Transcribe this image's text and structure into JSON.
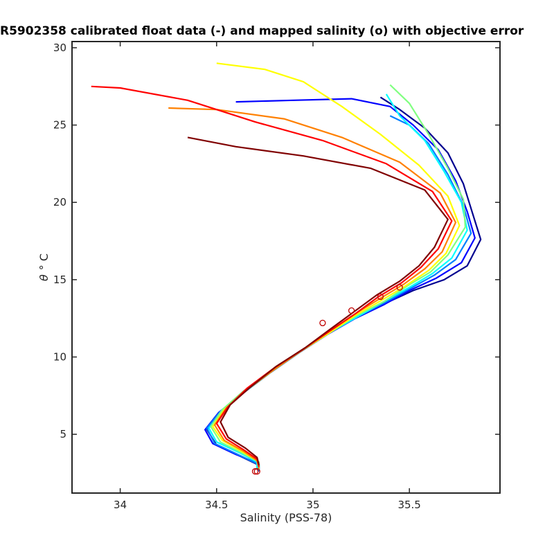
{
  "chart_data": {
    "type": "line",
    "title": "R5902358 calibrated float data (-) and mapped salinity (o) with objective error",
    "xlabel": "Salinity (PSS-78)",
    "ylabel_symbol": "θ",
    "ylabel_unit": "° C",
    "xlim": [
      33.75,
      35.97
    ],
    "ylim": [
      1.2,
      30.4
    ],
    "xticks": [
      34,
      34.5,
      35,
      35.5
    ],
    "xtick_labels": [
      "34",
      "34.5",
      "35",
      "35.5"
    ],
    "yticks": [
      5,
      10,
      15,
      20,
      25,
      30
    ],
    "ytick_labels": [
      "5",
      "10",
      "15",
      "20",
      "25",
      "30"
    ],
    "grid": false,
    "legend": "none",
    "colormap": [
      "#00008f",
      "#0000ff",
      "#0080ff",
      "#00ffff",
      "#80ff80",
      "#ffff00",
      "#ff8000",
      "#ff0000",
      "#800000"
    ],
    "series": [
      {
        "color": "#00008f",
        "points": [
          [
            34.72,
            2.6
          ],
          [
            34.72,
            3.0
          ],
          [
            34.62,
            3.6
          ],
          [
            34.5,
            4.3
          ],
          [
            34.45,
            5.3
          ],
          [
            34.52,
            6.4
          ],
          [
            34.63,
            7.6
          ],
          [
            34.78,
            9.0
          ],
          [
            34.93,
            10.3
          ],
          [
            35.08,
            11.5
          ],
          [
            35.22,
            12.6
          ],
          [
            35.38,
            13.5
          ],
          [
            35.52,
            14.3
          ],
          [
            35.68,
            15.0
          ],
          [
            35.8,
            15.9
          ],
          [
            35.87,
            17.6
          ],
          [
            35.83,
            19.2
          ],
          [
            35.78,
            21.2
          ],
          [
            35.7,
            23.2
          ],
          [
            35.58,
            24.8
          ],
          [
            35.45,
            26.0
          ],
          [
            35.35,
            26.8
          ]
        ]
      },
      {
        "color": "#0000ff",
        "points": [
          [
            34.72,
            2.7
          ],
          [
            34.72,
            3.1
          ],
          [
            34.6,
            3.7
          ],
          [
            34.48,
            4.4
          ],
          [
            34.44,
            5.3
          ],
          [
            34.51,
            6.4
          ],
          [
            34.63,
            7.6
          ],
          [
            34.78,
            9.0
          ],
          [
            34.93,
            10.3
          ],
          [
            35.08,
            11.5
          ],
          [
            35.22,
            12.5
          ],
          [
            35.37,
            13.4
          ],
          [
            35.5,
            14.3
          ],
          [
            35.64,
            15.1
          ],
          [
            35.77,
            16.1
          ],
          [
            35.84,
            17.7
          ],
          [
            35.8,
            19.4
          ],
          [
            35.74,
            21.4
          ],
          [
            35.65,
            23.4
          ],
          [
            35.52,
            25.0
          ],
          [
            35.4,
            26.2
          ],
          [
            35.2,
            26.7
          ],
          [
            34.9,
            26.6
          ],
          [
            34.6,
            26.5
          ]
        ]
      },
      {
        "color": "#0080ff",
        "points": [
          [
            34.72,
            2.6
          ],
          [
            34.71,
            3.1
          ],
          [
            34.61,
            3.7
          ],
          [
            34.49,
            4.4
          ],
          [
            34.45,
            5.4
          ],
          [
            34.52,
            6.5
          ],
          [
            34.64,
            7.7
          ],
          [
            34.79,
            9.1
          ],
          [
            34.94,
            10.4
          ],
          [
            35.09,
            11.6
          ],
          [
            35.23,
            12.6
          ],
          [
            35.37,
            13.5
          ],
          [
            35.5,
            14.4
          ],
          [
            35.63,
            15.3
          ],
          [
            35.74,
            16.3
          ],
          [
            35.82,
            18.0
          ],
          [
            35.78,
            19.8
          ],
          [
            35.7,
            21.8
          ],
          [
            35.6,
            23.8
          ],
          [
            35.5,
            25.0
          ],
          [
            35.4,
            25.6
          ]
        ]
      },
      {
        "color": "#00ffff",
        "points": [
          [
            34.71,
            2.7
          ],
          [
            34.71,
            3.2
          ],
          [
            34.62,
            3.8
          ],
          [
            34.5,
            4.5
          ],
          [
            34.46,
            5.4
          ],
          [
            34.53,
            6.5
          ],
          [
            34.64,
            7.7
          ],
          [
            34.79,
            9.1
          ],
          [
            34.94,
            10.4
          ],
          [
            35.09,
            11.6
          ],
          [
            35.23,
            12.6
          ],
          [
            35.37,
            13.6
          ],
          [
            35.5,
            14.5
          ],
          [
            35.62,
            15.4
          ],
          [
            35.72,
            16.4
          ],
          [
            35.8,
            18.2
          ],
          [
            35.77,
            20.0
          ],
          [
            35.68,
            22.0
          ],
          [
            35.58,
            24.0
          ],
          [
            35.45,
            25.6
          ],
          [
            35.38,
            27.0
          ]
        ]
      },
      {
        "color": "#80ff80",
        "points": [
          [
            34.72,
            2.7
          ],
          [
            34.72,
            3.2
          ],
          [
            34.63,
            3.8
          ],
          [
            34.52,
            4.5
          ],
          [
            34.47,
            5.5
          ],
          [
            34.53,
            6.6
          ],
          [
            34.64,
            7.8
          ],
          [
            34.79,
            9.1
          ],
          [
            34.94,
            10.4
          ],
          [
            35.09,
            11.6
          ],
          [
            35.23,
            12.7
          ],
          [
            35.37,
            13.6
          ],
          [
            35.49,
            14.6
          ],
          [
            35.61,
            15.5
          ],
          [
            35.7,
            16.6
          ],
          [
            35.79,
            18.4
          ],
          [
            35.78,
            20.2
          ],
          [
            35.7,
            22.2
          ],
          [
            35.6,
            24.4
          ],
          [
            35.5,
            26.4
          ],
          [
            35.4,
            27.6
          ]
        ]
      },
      {
        "color": "#ffff00",
        "points": [
          [
            34.72,
            2.8
          ],
          [
            34.71,
            3.3
          ],
          [
            34.63,
            3.9
          ],
          [
            34.53,
            4.6
          ],
          [
            34.48,
            5.5
          ],
          [
            34.54,
            6.6
          ],
          [
            34.65,
            7.8
          ],
          [
            34.79,
            9.2
          ],
          [
            34.94,
            10.4
          ],
          [
            35.09,
            11.6
          ],
          [
            35.22,
            12.7
          ],
          [
            35.36,
            13.7
          ],
          [
            35.48,
            14.6
          ],
          [
            35.6,
            15.6
          ],
          [
            35.69,
            16.7
          ],
          [
            35.76,
            18.5
          ],
          [
            35.7,
            20.4
          ],
          [
            35.55,
            22.4
          ],
          [
            35.35,
            24.4
          ],
          [
            35.15,
            26.2
          ],
          [
            34.95,
            27.8
          ],
          [
            34.75,
            28.6
          ],
          [
            34.5,
            29.0
          ]
        ]
      },
      {
        "color": "#ff8000",
        "points": [
          [
            34.72,
            2.8
          ],
          [
            34.71,
            3.3
          ],
          [
            34.64,
            3.9
          ],
          [
            34.54,
            4.6
          ],
          [
            34.49,
            5.6
          ],
          [
            34.55,
            6.7
          ],
          [
            34.66,
            7.9
          ],
          [
            34.8,
            9.2
          ],
          [
            34.95,
            10.5
          ],
          [
            35.09,
            11.7
          ],
          [
            35.22,
            12.8
          ],
          [
            35.35,
            13.8
          ],
          [
            35.47,
            14.7
          ],
          [
            35.58,
            15.7
          ],
          [
            35.67,
            16.8
          ],
          [
            35.74,
            18.7
          ],
          [
            35.66,
            20.6
          ],
          [
            35.45,
            22.6
          ],
          [
            35.15,
            24.2
          ],
          [
            34.85,
            25.4
          ],
          [
            34.5,
            26.0
          ],
          [
            34.25,
            26.1
          ]
        ]
      },
      {
        "color": "#ff0000",
        "points": [
          [
            34.72,
            2.9
          ],
          [
            34.71,
            3.4
          ],
          [
            34.64,
            4.0
          ],
          [
            34.55,
            4.7
          ],
          [
            34.5,
            5.7
          ],
          [
            34.56,
            6.8
          ],
          [
            34.66,
            8.0
          ],
          [
            34.8,
            9.3
          ],
          [
            34.95,
            10.5
          ],
          [
            35.09,
            11.7
          ],
          [
            35.22,
            12.8
          ],
          [
            35.34,
            13.9
          ],
          [
            35.46,
            14.8
          ],
          [
            35.56,
            15.8
          ],
          [
            35.65,
            17.0
          ],
          [
            35.72,
            18.8
          ],
          [
            35.62,
            20.7
          ],
          [
            35.38,
            22.5
          ],
          [
            35.05,
            24.0
          ],
          [
            34.7,
            25.2
          ],
          [
            34.35,
            26.6
          ],
          [
            34.0,
            27.4
          ],
          [
            33.85,
            27.5
          ]
        ]
      },
      {
        "color": "#800000",
        "points": [
          [
            34.72,
            3.0
          ],
          [
            34.71,
            3.5
          ],
          [
            34.65,
            4.1
          ],
          [
            34.56,
            4.8
          ],
          [
            34.52,
            5.8
          ],
          [
            34.57,
            6.9
          ],
          [
            34.67,
            8.0
          ],
          [
            34.81,
            9.4
          ],
          [
            34.96,
            10.6
          ],
          [
            35.09,
            11.8
          ],
          [
            35.21,
            12.9
          ],
          [
            35.33,
            14.0
          ],
          [
            35.45,
            14.9
          ],
          [
            35.55,
            15.9
          ],
          [
            35.63,
            17.1
          ],
          [
            35.7,
            18.9
          ],
          [
            35.58,
            20.8
          ],
          [
            35.3,
            22.2
          ],
          [
            34.95,
            23.0
          ],
          [
            34.6,
            23.6
          ],
          [
            34.35,
            24.2
          ]
        ]
      }
    ],
    "mapped_points": [
      [
        34.71,
        2.6
      ],
      [
        34.7,
        2.6
      ],
      [
        35.05,
        12.2
      ],
      [
        35.2,
        13.0
      ],
      [
        35.35,
        13.9
      ],
      [
        35.45,
        14.5
      ]
    ]
  }
}
